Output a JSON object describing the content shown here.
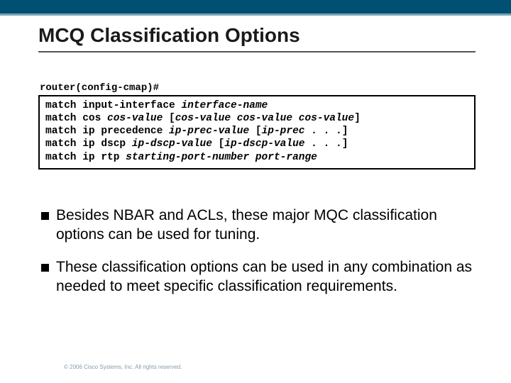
{
  "colors": {
    "top_bar": "#005073",
    "top_bar_accent": "#7aa6b8",
    "title_text": "#1a1a1a",
    "underline": "#555555",
    "body_text": "#000000",
    "footer_text": "#8a9aa5",
    "background": "#ffffff",
    "bullet_marker": "#000000",
    "code_border": "#000000"
  },
  "title": "MCQ Classification Options",
  "prompt": "router(config-cmap)#",
  "code_lines": [
    {
      "cmd": "match input-interface ",
      "arg": "interface-name"
    },
    {
      "cmd": "match cos ",
      "arg": "cos-value ",
      "tail_cmd": "[",
      "tail_arg": "cos-value cos-value cos-value",
      "tail_close": "]"
    },
    {
      "cmd": "match ip precedence ",
      "arg": "ip-prec-value ",
      "tail_cmd": "[",
      "tail_arg": "ip-prec",
      "tail_close": " . . .]"
    },
    {
      "cmd": "match ip dscp ",
      "arg": "ip-dscp-value ",
      "tail_cmd": "[",
      "tail_arg": "ip-dscp-value",
      "tail_close": " . . .]"
    },
    {
      "cmd": "match ip rtp ",
      "arg": "starting-port-number port-range"
    }
  ],
  "bullets": [
    "Besides NBAR and ACLs, these major MQC classification options can be used for tuning.",
    "These classification options can be used in any combination as needed to meet specific classification requirements."
  ],
  "footer": "© 2006 Cisco Systems, Inc. All rights reserved."
}
